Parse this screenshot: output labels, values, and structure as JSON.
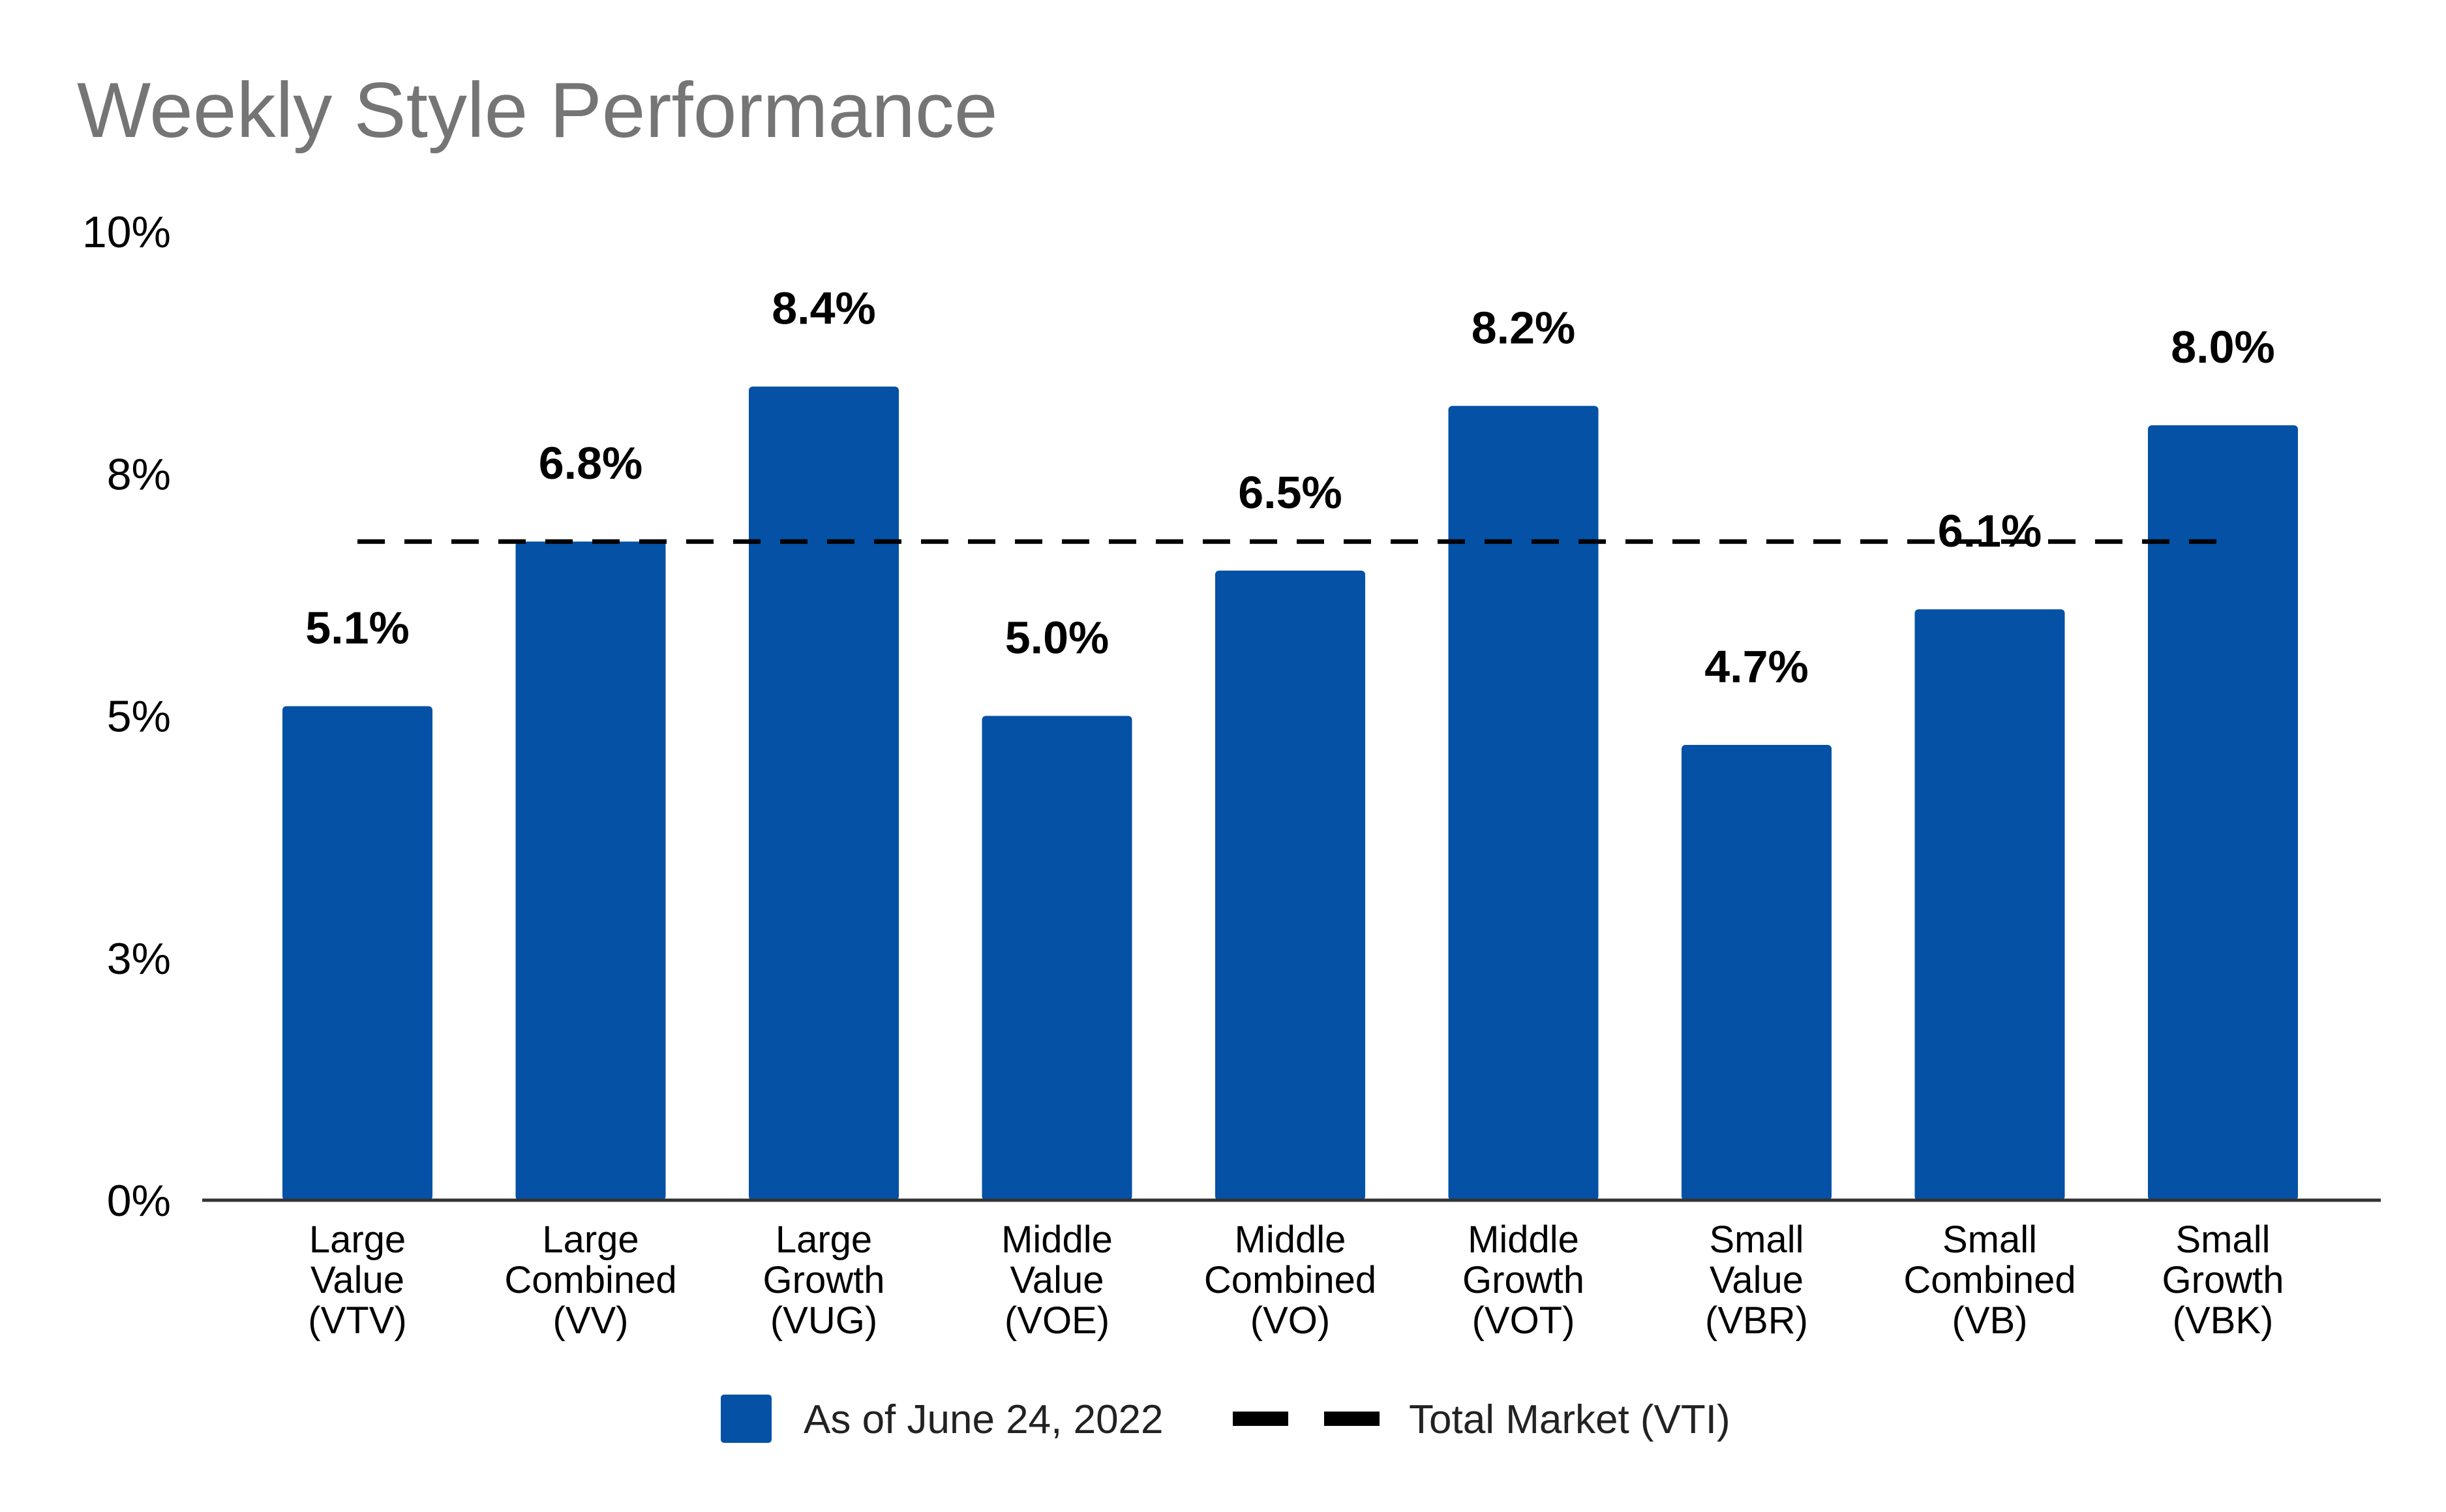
{
  "chart_data": {
    "type": "bar",
    "title": "Weekly Style Performance",
    "categories": [
      [
        "Large",
        "Value",
        "(VTV)"
      ],
      [
        "Large",
        "Combined",
        "(VV)"
      ],
      [
        "Large",
        "Growth",
        "(VUG)"
      ],
      [
        "Middle",
        "Value",
        "(VOE)"
      ],
      [
        "Middle",
        "Combined",
        "(VO)"
      ],
      [
        "Middle",
        "Growth",
        "(VOT)"
      ],
      [
        "Small",
        "Value",
        "(VBR)"
      ],
      [
        "Small",
        "Combined",
        "(VB)"
      ],
      [
        "Small",
        "Growth",
        "(VBK)"
      ]
    ],
    "series": [
      {
        "name": "As of June 24, 2022",
        "values": [
          5.1,
          6.8,
          8.4,
          5.0,
          6.5,
          8.2,
          4.7,
          6.1,
          8.0
        ],
        "labels": [
          "5.1%",
          "6.8%",
          "8.4%",
          "5.0%",
          "6.5%",
          "8.2%",
          "4.7%",
          "6.1%",
          "8.0%"
        ],
        "color": "#0451A5"
      }
    ],
    "reference_line": {
      "name": "Total Market (VTI)",
      "value": 6.8,
      "style": "dashed",
      "color": "#000000"
    },
    "ylim": [
      0,
      10
    ],
    "y_ticks": [
      0,
      2.5,
      5,
      7.5,
      10
    ],
    "y_tick_labels": [
      "0%",
      "3%",
      "5%",
      "8%",
      "10%"
    ],
    "xlabel": "",
    "ylabel": "",
    "grid": false,
    "legend_position": "bottom-center",
    "axis_color": "#333333",
    "title_color": "#757575",
    "label_color": "#000000"
  }
}
